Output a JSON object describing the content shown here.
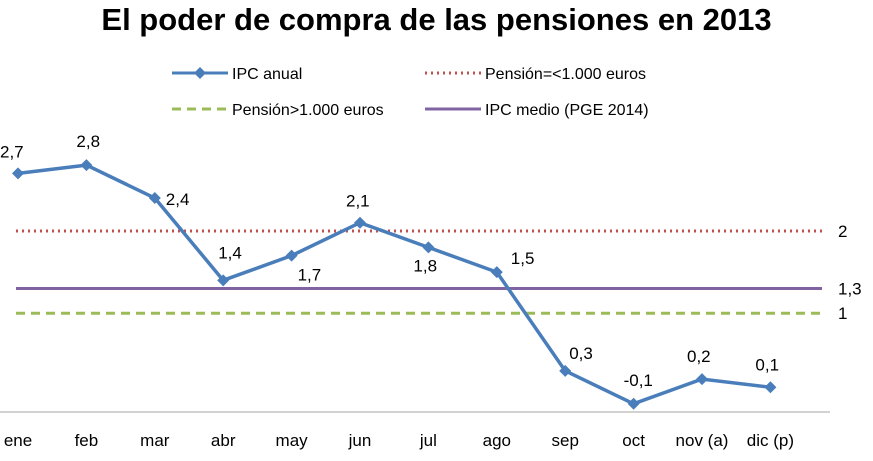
{
  "chart_data": {
    "type": "line",
    "title": "El poder de compra de las pensiones en 2013",
    "categories": [
      "ene",
      "feb",
      "mar",
      "abr",
      "may",
      "jun",
      "jul",
      "ago",
      "sep",
      "oct",
      "nov (a)",
      "dic (p)"
    ],
    "series": [
      {
        "name": "IPC anual",
        "values": [
          2.7,
          2.8,
          2.4,
          1.4,
          1.7,
          2.1,
          1.8,
          1.5,
          0.3,
          -0.1,
          0.2,
          0.1
        ],
        "labels": [
          "2,7",
          "2,8",
          "2,4",
          "1,4",
          "1,7",
          "2,1",
          "1,8",
          "1,5",
          "0,3",
          "-0,1",
          "0,2",
          "0,1"
        ],
        "color": "#4a7ebb",
        "style": "solid",
        "marker": "diamond"
      },
      {
        "name": "Pensión=<1.000 euros",
        "value": 2,
        "end_label": "2",
        "color": "#c0504d",
        "style": "dotted"
      },
      {
        "name": "Pensión>1.000 euros",
        "value": 1,
        "end_label": "1",
        "color": "#9bbb59",
        "style": "dashed"
      },
      {
        "name": "IPC medio (PGE 2014)",
        "value": 1.3,
        "end_label": "1,3",
        "color": "#8064a2",
        "style": "solid"
      }
    ],
    "ylim": [
      -0.2,
      3.0
    ],
    "grid": false,
    "legend_position": "top"
  }
}
